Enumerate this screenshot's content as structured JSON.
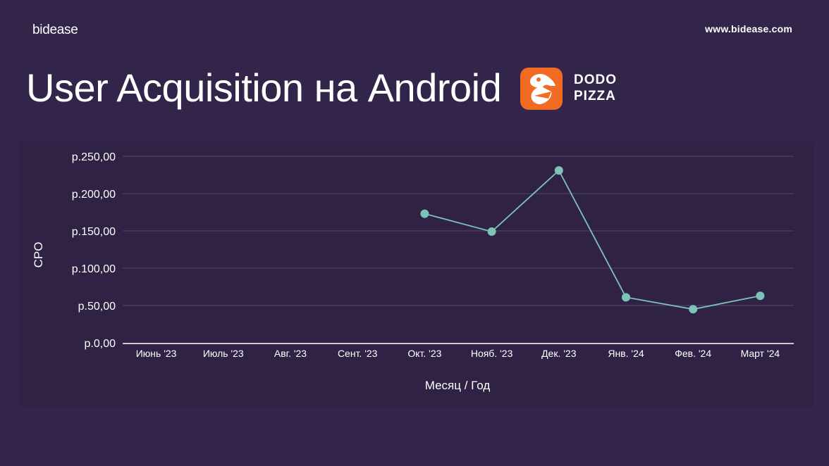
{
  "header": {
    "brand": "bidease",
    "site": "www.bidease.com",
    "title": "User Acquisition на Android"
  },
  "partner": {
    "name_line1": "DODO",
    "name_line2": "PIZZA",
    "logo_icon": "dodo-bird-icon",
    "logo_color": "#f26b22"
  },
  "colors": {
    "background": "#33254a",
    "line": "#7ec3b8",
    "grid": "#54456d"
  },
  "chart_data": {
    "type": "line",
    "xlabel": "Месяц / Год",
    "ylabel": "CPO",
    "categories": [
      "Июнь '23",
      "Июль '23",
      "Авг. '23",
      "Сент. '23",
      "Окт. '23",
      "Нояб. '23",
      "Дек. '23",
      "Янв. '24",
      "Фев. '24",
      "Март '24"
    ],
    "series": [
      {
        "values": [
          null,
          null,
          null,
          null,
          173,
          149,
          231,
          61,
          45,
          63
        ]
      }
    ],
    "yticks": [
      0,
      50,
      100,
      150,
      200,
      250
    ],
    "ytick_labels": [
      "р.0,00",
      "р.50,00",
      "р.100,00",
      "р.150,00",
      "р.200,00",
      "р.250,00"
    ],
    "ylim": [
      0,
      250
    ],
    "grid": true,
    "legend": "none"
  }
}
